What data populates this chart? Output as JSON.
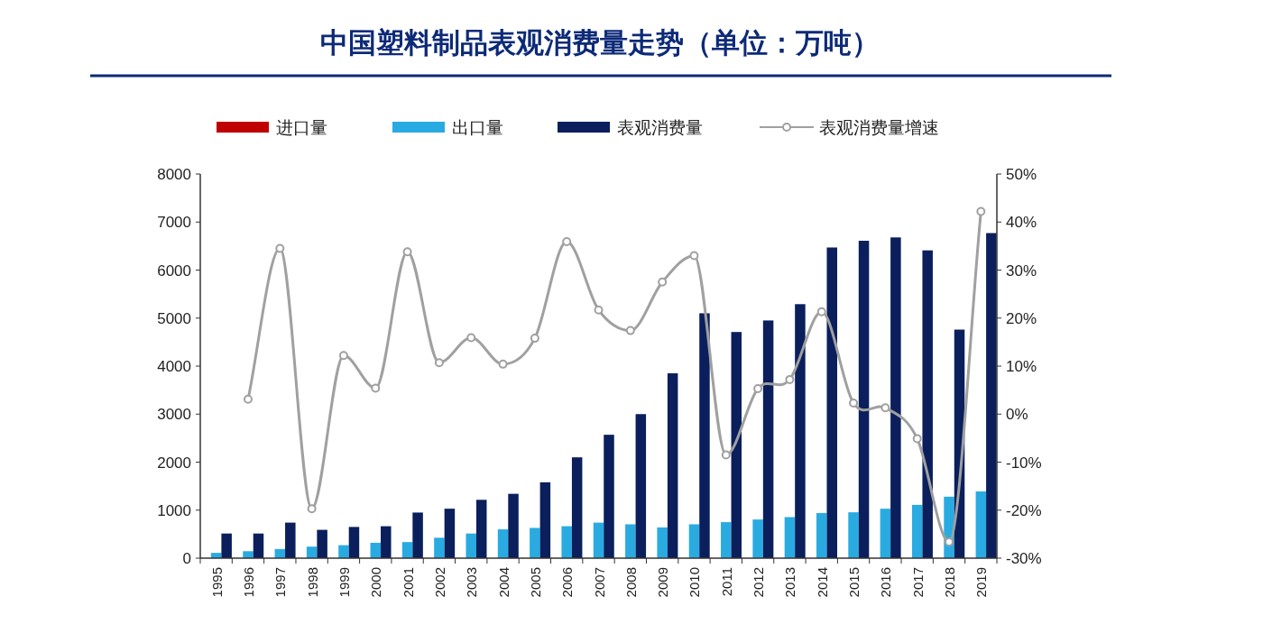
{
  "chart_data": {
    "type": "bar",
    "title": "中国塑料制品表观消费量走势（单位：万吨）",
    "categories": [
      "1995",
      "1996",
      "1997",
      "1998",
      "1999",
      "2000",
      "2001",
      "2002",
      "2003",
      "2004",
      "2005",
      "2006",
      "2007",
      "2008",
      "2009",
      "2010",
      "2011",
      "2012",
      "2013",
      "2014",
      "2015",
      "2016",
      "2017",
      "2018",
      "2019"
    ],
    "series": [
      {
        "name": "进口量",
        "color": "#c00000",
        "values": [
          null,
          null,
          null,
          null,
          null,
          null,
          null,
          null,
          null,
          null,
          null,
          null,
          null,
          null,
          null,
          null,
          null,
          null,
          null,
          null,
          null,
          null,
          null,
          null,
          null
        ]
      },
      {
        "name": "出口量",
        "color": "#29abe2",
        "values": [
          110,
          145,
          190,
          240,
          270,
          320,
          335,
          425,
          513,
          600,
          630,
          665,
          740,
          705,
          640,
          705,
          750,
          805,
          855,
          940,
          955,
          1030,
          1110,
          1280,
          1390
        ]
      },
      {
        "name": "表观消费量",
        "color": "#0a1f5c",
        "values": [
          513,
          513,
          740,
          590,
          650,
          665,
          950,
          1030,
          1215,
          1340,
          1580,
          2100,
          2570,
          3000,
          3850,
          5100,
          4710,
          4950,
          5290,
          6470,
          6610,
          6680,
          6410,
          4760,
          6770
        ]
      },
      {
        "name": "表观消费量增速",
        "type": "line",
        "axis": "y2",
        "marker": "circle",
        "color": "#a0a0a0",
        "values": [
          null,
          3.1,
          34.5,
          -19.7,
          12.2,
          5.4,
          33.8,
          10.7,
          15.9,
          10.4,
          15.8,
          35.9,
          21.7,
          17.4,
          27.5,
          33.0,
          -8.5,
          5.3,
          7.2,
          21.3,
          2.3,
          1.3,
          -5.1,
          -26.6,
          42.2
        ]
      }
    ],
    "ylim": [
      0,
      8000
    ],
    "yticks": [
      0,
      1000,
      2000,
      3000,
      4000,
      5000,
      6000,
      7000,
      8000
    ],
    "y2lim": [
      -30,
      50
    ],
    "y2ticks": [
      {
        "value": -30,
        "label": "-30%"
      },
      {
        "value": -20,
        "label": "-20%"
      },
      {
        "value": -10,
        "label": "-10%"
      },
      {
        "value": 0,
        "label": "0%"
      },
      {
        "value": 10,
        "label": "10%"
      },
      {
        "value": 20,
        "label": "20%"
      },
      {
        "value": 30,
        "label": "30%"
      },
      {
        "value": 40,
        "label": "40%"
      },
      {
        "value": 50,
        "label": "50%"
      }
    ],
    "legend": "top",
    "grid": false
  }
}
